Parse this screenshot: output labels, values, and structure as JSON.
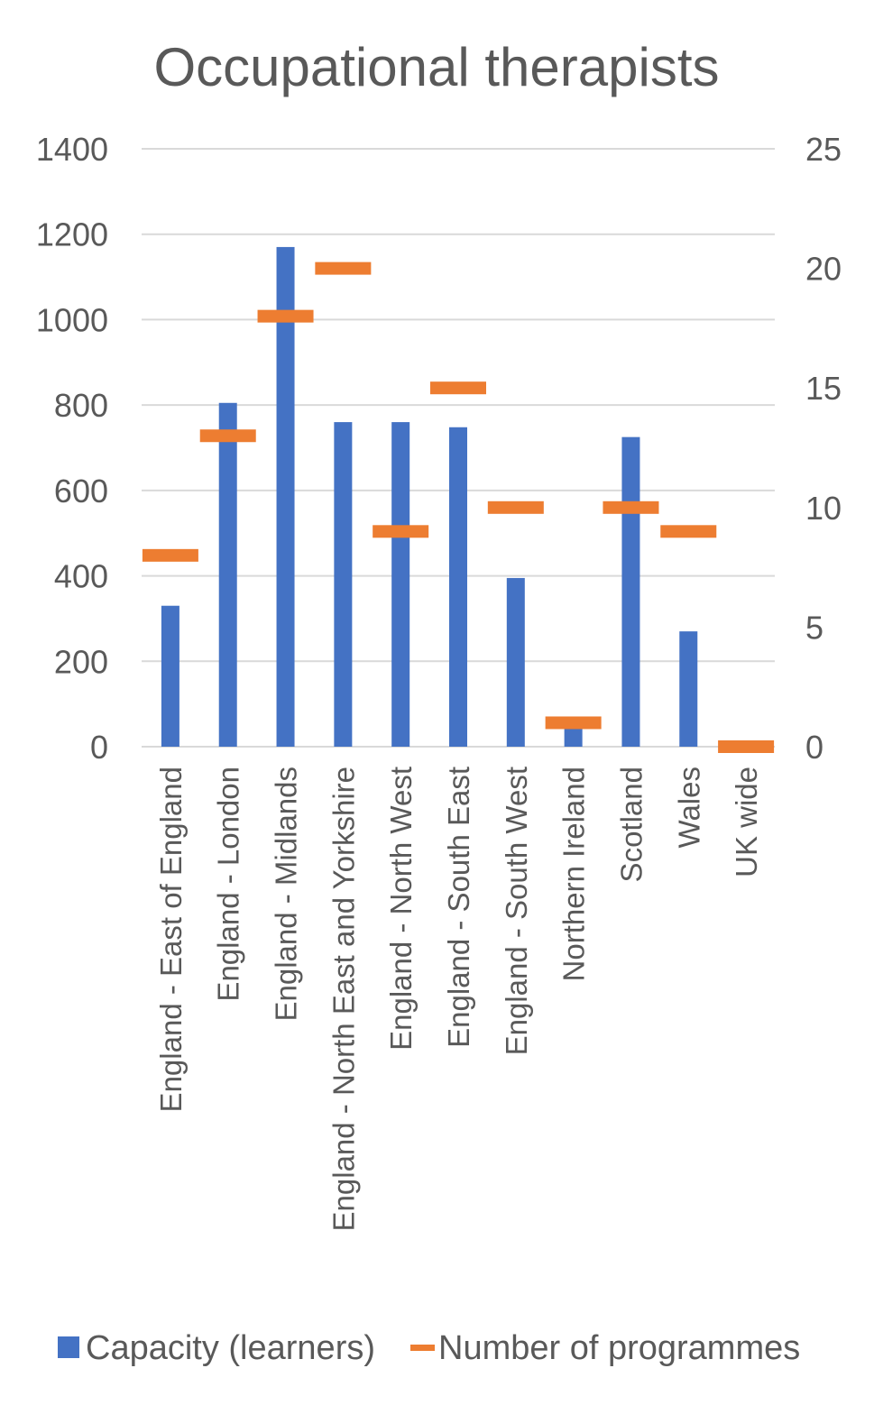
{
  "chart_data": {
    "type": "bar",
    "title": "Occupational therapists",
    "categories": [
      "England - East of England",
      "England - London",
      "England - Midlands",
      "England - North East and Yorkshire",
      "England - North West",
      "England - South East",
      "England - South West",
      "Northern Ireland",
      "Scotland",
      "Wales",
      "UK wide"
    ],
    "series": [
      {
        "name": "Capacity (learners)",
        "type": "bar",
        "axis": "left",
        "color": "#4472C4",
        "values": [
          330,
          805,
          1170,
          760,
          760,
          748,
          395,
          60,
          725,
          270,
          0
        ]
      },
      {
        "name": "Number of programmes",
        "type": "marker",
        "axis": "right",
        "color": "#ED7D31",
        "values": [
          8,
          13,
          18,
          20,
          9,
          15,
          10,
          1,
          10,
          9,
          0
        ]
      }
    ],
    "y_left": {
      "ylim": [
        0,
        1400
      ],
      "ticks": [
        "0",
        "200",
        "400",
        "600",
        "800",
        "1000",
        "1200",
        "1400"
      ]
    },
    "y_right": {
      "ylim": [
        0,
        25
      ],
      "ticks": [
        "0",
        "5",
        "10",
        "15",
        "20",
        "25"
      ]
    },
    "grid": true,
    "legend_position": "bottom"
  }
}
